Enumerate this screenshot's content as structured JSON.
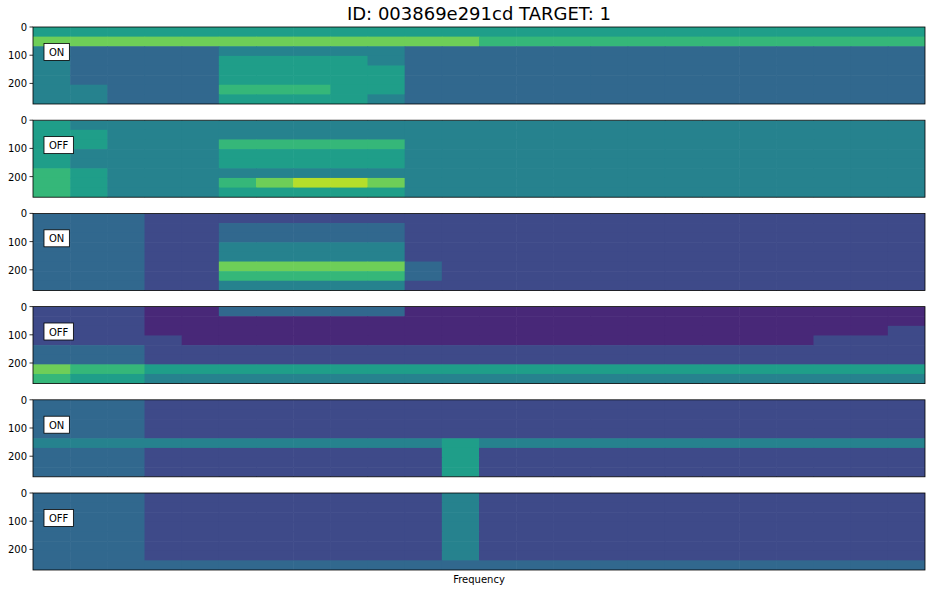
{
  "chart_data": [
    {
      "type": "heatmap",
      "title": "ID: 003869e291cd  TARGET: 1",
      "annotation": "ON",
      "ylim": [
        0,
        273
      ],
      "yticks": [
        0,
        100,
        200
      ],
      "tick_labels": "y",
      "colorbar_range": [
        0,
        9
      ],
      "cells": [
        [
          5,
          5,
          5,
          5,
          5,
          5,
          5,
          5,
          5,
          5,
          5,
          5,
          5,
          5,
          5,
          5,
          5,
          5,
          5,
          5,
          5,
          5,
          5,
          5
        ],
        [
          7,
          7,
          7,
          7,
          7,
          7,
          7,
          7,
          7,
          7,
          7,
          7,
          6,
          6,
          6,
          6,
          6,
          6,
          6,
          6,
          6,
          6,
          6,
          6
        ],
        [
          4,
          3,
          3,
          3,
          3,
          4,
          4,
          4,
          4,
          4,
          3,
          3,
          3,
          3,
          3,
          3,
          3,
          3,
          3,
          3,
          3,
          3,
          3,
          3
        ],
        [
          4,
          3,
          3,
          3,
          3,
          5,
          5,
          5,
          5,
          4,
          3,
          3,
          3,
          3,
          3,
          3,
          3,
          3,
          3,
          3,
          3,
          3,
          3,
          3
        ],
        [
          4,
          3,
          3,
          3,
          3,
          5,
          5,
          5,
          5,
          5,
          3,
          3,
          3,
          3,
          3,
          3,
          3,
          3,
          3,
          3,
          3,
          3,
          3,
          3
        ],
        [
          4,
          3,
          3,
          3,
          3,
          5,
          5,
          5,
          5,
          5,
          3,
          3,
          3,
          3,
          3,
          3,
          3,
          3,
          3,
          3,
          3,
          3,
          3,
          3
        ],
        [
          4,
          4,
          3,
          3,
          3,
          6,
          6,
          6,
          5,
          5,
          3,
          3,
          3,
          3,
          3,
          3,
          3,
          3,
          3,
          3,
          3,
          3,
          3,
          3
        ],
        [
          4,
          4,
          3,
          3,
          3,
          5,
          5,
          5,
          5,
          4,
          3,
          3,
          3,
          3,
          3,
          3,
          3,
          3,
          3,
          3,
          3,
          3,
          3,
          3
        ]
      ]
    },
    {
      "type": "heatmap",
      "annotation": "OFF",
      "ylim": [
        0,
        273
      ],
      "yticks": [
        0,
        100,
        200
      ],
      "tick_labels": "y",
      "colorbar_range": [
        0,
        9
      ],
      "cells": [
        [
          5,
          4,
          4,
          4,
          4,
          4,
          4,
          4,
          4,
          4,
          4,
          4,
          4,
          4,
          4,
          4,
          4,
          4,
          4,
          4,
          4,
          4,
          4,
          4
        ],
        [
          5,
          5,
          4,
          4,
          4,
          4,
          4,
          4,
          4,
          4,
          4,
          4,
          4,
          4,
          4,
          4,
          4,
          4,
          4,
          4,
          4,
          4,
          4,
          4
        ],
        [
          5,
          5,
          4,
          4,
          4,
          6,
          6,
          6,
          6,
          6,
          4,
          4,
          4,
          4,
          4,
          4,
          4,
          4,
          4,
          4,
          4,
          4,
          4,
          4
        ],
        [
          5,
          4,
          4,
          4,
          4,
          5,
          5,
          5,
          5,
          5,
          4,
          4,
          4,
          4,
          4,
          4,
          4,
          4,
          4,
          4,
          4,
          4,
          4,
          4
        ],
        [
          5,
          4,
          4,
          4,
          4,
          5,
          5,
          5,
          5,
          5,
          4,
          4,
          4,
          4,
          4,
          4,
          4,
          4,
          4,
          4,
          4,
          4,
          4,
          4
        ],
        [
          6,
          5,
          4,
          4,
          4,
          4,
          4,
          4,
          4,
          4,
          4,
          4,
          4,
          4,
          4,
          4,
          4,
          4,
          4,
          4,
          4,
          4,
          4,
          4
        ],
        [
          6,
          5,
          4,
          4,
          4,
          6,
          7,
          8,
          8,
          7,
          4,
          4,
          4,
          4,
          4,
          4,
          4,
          4,
          4,
          4,
          4,
          4,
          4,
          4
        ],
        [
          6,
          5,
          4,
          4,
          4,
          5,
          5,
          5,
          5,
          5,
          4,
          4,
          4,
          4,
          4,
          4,
          4,
          4,
          4,
          4,
          4,
          4,
          4,
          4
        ]
      ]
    },
    {
      "type": "heatmap",
      "annotation": "ON",
      "ylim": [
        0,
        273
      ],
      "yticks": [
        0,
        100,
        200
      ],
      "tick_labels": "y",
      "colorbar_range": [
        0,
        9
      ],
      "cells": [
        [
          3,
          3,
          3,
          2,
          2,
          2,
          2,
          2,
          2,
          2,
          2,
          2,
          2,
          2,
          2,
          2,
          2,
          2,
          2,
          2,
          2,
          2,
          2,
          2
        ],
        [
          3,
          3,
          3,
          2,
          2,
          3,
          3,
          3,
          3,
          3,
          2,
          2,
          2,
          2,
          2,
          2,
          2,
          2,
          2,
          2,
          2,
          2,
          2,
          2
        ],
        [
          3,
          3,
          3,
          2,
          2,
          3,
          3,
          3,
          3,
          3,
          2,
          2,
          2,
          2,
          2,
          2,
          2,
          2,
          2,
          2,
          2,
          2,
          2,
          2
        ],
        [
          3,
          3,
          3,
          2,
          2,
          4,
          4,
          4,
          4,
          4,
          2,
          2,
          2,
          2,
          2,
          2,
          2,
          2,
          2,
          2,
          2,
          2,
          2,
          2
        ],
        [
          3,
          3,
          3,
          2,
          2,
          4,
          4,
          4,
          4,
          4,
          2,
          2,
          2,
          2,
          2,
          2,
          2,
          2,
          2,
          2,
          2,
          2,
          2,
          2
        ],
        [
          3,
          3,
          3,
          2,
          2,
          7,
          7,
          7,
          7,
          7,
          3,
          2,
          2,
          2,
          2,
          2,
          2,
          2,
          2,
          2,
          2,
          2,
          2,
          2
        ],
        [
          3,
          3,
          3,
          2,
          2,
          6,
          6,
          6,
          6,
          6,
          3,
          2,
          2,
          2,
          2,
          2,
          2,
          2,
          2,
          2,
          2,
          2,
          2,
          2
        ],
        [
          3,
          3,
          3,
          2,
          2,
          4,
          4,
          4,
          4,
          4,
          2,
          2,
          2,
          2,
          2,
          2,
          2,
          2,
          2,
          2,
          2,
          2,
          2,
          2
        ]
      ]
    },
    {
      "type": "heatmap",
      "annotation": "OFF",
      "ylim": [
        0,
        273
      ],
      "yticks": [
        0,
        100,
        200
      ],
      "tick_labels": "y",
      "colorbar_range": [
        0,
        9
      ],
      "cells": [
        [
          2,
          2,
          2,
          1,
          1,
          3,
          3,
          3,
          3,
          3,
          1,
          1,
          1,
          1,
          1,
          1,
          1,
          1,
          1,
          1,
          1,
          1,
          1,
          1
        ],
        [
          2,
          2,
          2,
          1,
          1,
          1,
          1,
          1,
          1,
          1,
          1,
          1,
          1,
          1,
          1,
          1,
          1,
          1,
          1,
          1,
          1,
          1,
          1,
          1
        ],
        [
          2,
          2,
          2,
          1,
          1,
          1,
          1,
          1,
          1,
          1,
          1,
          1,
          1,
          1,
          1,
          1,
          1,
          1,
          1,
          1,
          1,
          1,
          1,
          2
        ],
        [
          2,
          2,
          2,
          2,
          1,
          1,
          1,
          1,
          1,
          1,
          1,
          1,
          1,
          1,
          1,
          1,
          1,
          1,
          1,
          1,
          1,
          2,
          2,
          2
        ],
        [
          3,
          3,
          3,
          2,
          2,
          2,
          2,
          2,
          2,
          2,
          2,
          2,
          2,
          2,
          2,
          2,
          2,
          2,
          2,
          2,
          2,
          2,
          2,
          2
        ],
        [
          3,
          3,
          3,
          2,
          2,
          2,
          2,
          2,
          2,
          2,
          2,
          2,
          2,
          2,
          2,
          2,
          2,
          2,
          2,
          2,
          2,
          2,
          2,
          2
        ],
        [
          7,
          6,
          6,
          5,
          5,
          5,
          5,
          5,
          5,
          5,
          5,
          5,
          5,
          5,
          5,
          5,
          5,
          5,
          5,
          5,
          5,
          5,
          5,
          5
        ],
        [
          6,
          5,
          5,
          4,
          4,
          4,
          4,
          4,
          4,
          4,
          4,
          4,
          4,
          4,
          4,
          4,
          4,
          4,
          4,
          4,
          4,
          4,
          4,
          4
        ]
      ]
    },
    {
      "type": "heatmap",
      "annotation": "ON",
      "ylim": [
        0,
        273
      ],
      "yticks": [
        0,
        100,
        200
      ],
      "tick_labels": "y",
      "colorbar_range": [
        0,
        9
      ],
      "cells": [
        [
          3,
          3,
          3,
          2,
          2,
          2,
          2,
          2,
          2,
          2,
          2,
          2,
          2,
          2,
          2,
          2,
          2,
          2,
          2,
          2,
          2,
          2,
          2,
          2
        ],
        [
          3,
          3,
          3,
          2,
          2,
          2,
          2,
          2,
          2,
          2,
          2,
          2,
          2,
          2,
          2,
          2,
          2,
          2,
          2,
          2,
          2,
          2,
          2,
          2
        ],
        [
          3,
          3,
          3,
          2,
          2,
          2,
          2,
          2,
          2,
          2,
          2,
          2,
          2,
          2,
          2,
          2,
          2,
          2,
          2,
          2,
          2,
          2,
          2,
          2
        ],
        [
          3,
          3,
          3,
          2,
          2,
          2,
          2,
          2,
          2,
          2,
          2,
          2,
          2,
          2,
          2,
          2,
          2,
          2,
          2,
          2,
          2,
          2,
          2,
          2
        ],
        [
          4,
          4,
          4,
          4,
          4,
          4,
          4,
          4,
          4,
          4,
          4,
          5,
          4,
          4,
          4,
          4,
          4,
          4,
          4,
          4,
          4,
          4,
          4,
          4
        ],
        [
          3,
          3,
          3,
          2,
          2,
          2,
          2,
          2,
          2,
          2,
          2,
          5,
          2,
          2,
          2,
          2,
          2,
          2,
          2,
          2,
          2,
          2,
          2,
          2
        ],
        [
          3,
          3,
          3,
          2,
          2,
          2,
          2,
          2,
          2,
          2,
          2,
          5,
          2,
          2,
          2,
          2,
          2,
          2,
          2,
          2,
          2,
          2,
          2,
          2
        ],
        [
          3,
          3,
          3,
          2,
          2,
          2,
          2,
          2,
          2,
          2,
          2,
          5,
          2,
          2,
          2,
          2,
          2,
          2,
          2,
          2,
          2,
          2,
          2,
          2
        ]
      ]
    },
    {
      "type": "heatmap",
      "annotation": "OFF",
      "ylim": [
        0,
        273
      ],
      "yticks": [
        0,
        100,
        200
      ],
      "tick_labels": "y",
      "colorbar_range": [
        0,
        9
      ],
      "x_label": "Frequency",
      "cells": [
        [
          3,
          3,
          3,
          2,
          2,
          2,
          2,
          2,
          2,
          2,
          2,
          4,
          2,
          2,
          2,
          2,
          2,
          2,
          2,
          2,
          2,
          2,
          2,
          2
        ],
        [
          3,
          3,
          3,
          2,
          2,
          2,
          2,
          2,
          2,
          2,
          2,
          4,
          2,
          2,
          2,
          2,
          2,
          2,
          2,
          2,
          2,
          2,
          2,
          2
        ],
        [
          3,
          3,
          3,
          2,
          2,
          2,
          2,
          2,
          2,
          2,
          2,
          4,
          2,
          2,
          2,
          2,
          2,
          2,
          2,
          2,
          2,
          2,
          2,
          2
        ],
        [
          3,
          3,
          3,
          2,
          2,
          2,
          2,
          2,
          2,
          2,
          2,
          4,
          2,
          2,
          2,
          2,
          2,
          2,
          2,
          2,
          2,
          2,
          2,
          2
        ],
        [
          3,
          3,
          3,
          2,
          2,
          2,
          2,
          2,
          2,
          2,
          2,
          4,
          2,
          2,
          2,
          2,
          2,
          2,
          2,
          2,
          2,
          2,
          2,
          2
        ],
        [
          3,
          3,
          3,
          2,
          2,
          2,
          2,
          2,
          2,
          2,
          2,
          4,
          2,
          2,
          2,
          2,
          2,
          2,
          2,
          2,
          2,
          2,
          2,
          2
        ],
        [
          3,
          3,
          3,
          2,
          2,
          2,
          2,
          2,
          2,
          2,
          2,
          4,
          2,
          2,
          2,
          2,
          2,
          2,
          2,
          2,
          2,
          2,
          2,
          2
        ],
        [
          3,
          3,
          3,
          3,
          3,
          3,
          3,
          3,
          3,
          3,
          3,
          3,
          3,
          3,
          3,
          3,
          3,
          3,
          3,
          3,
          3,
          3,
          3,
          3
        ]
      ]
    }
  ]
}
